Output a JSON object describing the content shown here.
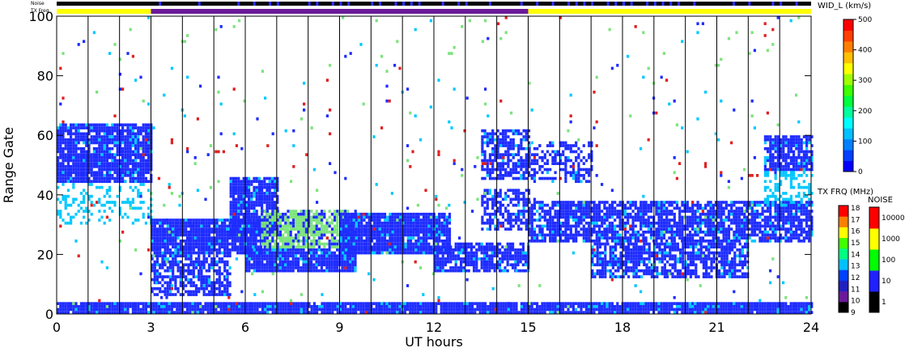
{
  "chart_data": {
    "type": "heatmap",
    "xlabel": "UT hours",
    "ylabel": "Range Gate",
    "xlim": [
      0,
      24
    ],
    "ylim": [
      0,
      100
    ],
    "x_ticks": [
      "0",
      "3",
      "6",
      "9",
      "12",
      "15",
      "18",
      "21",
      "24"
    ],
    "x_tick_values": [
      0,
      3,
      6,
      9,
      12,
      15,
      18,
      21,
      24
    ],
    "y_ticks": [
      "0",
      "20",
      "40",
      "60",
      "80",
      "100"
    ],
    "y_tick_values": [
      0,
      20,
      40,
      60,
      80,
      100
    ],
    "scan_lines_hours": [
      1,
      2,
      3,
      4,
      5,
      6,
      7,
      8,
      9,
      10,
      11,
      12,
      13,
      14,
      15,
      16,
      17,
      18,
      19,
      20,
      21,
      22,
      23
    ],
    "top_strips": {
      "noise_label": "Noise",
      "txfreq_label": "TX Freq",
      "txfreq_segments": [
        {
          "from": 0,
          "to": 3,
          "color": "#ffff00"
        },
        {
          "from": 3,
          "to": 15,
          "color": "#6a1a9a"
        },
        {
          "from": 15,
          "to": 24,
          "color": "#ffff00"
        }
      ]
    },
    "scatter_regions": [
      {
        "x0": 0.0,
        "x1": 3.0,
        "y0": 44,
        "y1": 64,
        "level": 1,
        "density": 0.9
      },
      {
        "x0": 0.0,
        "x1": 3.0,
        "y0": 30,
        "y1": 44,
        "level": 2,
        "density": 0.25
      },
      {
        "x0": 3.0,
        "x1": 6.5,
        "y0": 20,
        "y1": 32,
        "level": 1,
        "density": 0.95
      },
      {
        "x0": 3.0,
        "x1": 5.5,
        "y0": 6,
        "y1": 20,
        "level": 1,
        "density": 0.7
      },
      {
        "x0": 5.5,
        "x1": 7.0,
        "y0": 26,
        "y1": 46,
        "level": 1,
        "density": 0.85
      },
      {
        "x0": 6.0,
        "x1": 9.5,
        "y0": 14,
        "y1": 22,
        "level": 1,
        "density": 0.95
      },
      {
        "x0": 6.5,
        "x1": 9.5,
        "y0": 22,
        "y1": 35,
        "level": 3,
        "density": 0.8
      },
      {
        "x0": 9.0,
        "x1": 12.5,
        "y0": 20,
        "y1": 34,
        "level": 1,
        "density": 0.95
      },
      {
        "x0": 12.0,
        "x1": 15.0,
        "y0": 14,
        "y1": 24,
        "level": 1,
        "density": 0.8
      },
      {
        "x0": 13.5,
        "x1": 15.0,
        "y0": 45,
        "y1": 62,
        "level": 1,
        "density": 0.7
      },
      {
        "x0": 13.5,
        "x1": 15.0,
        "y0": 28,
        "y1": 42,
        "level": 1,
        "density": 0.6
      },
      {
        "x0": 15.0,
        "x1": 17.0,
        "y0": 44,
        "y1": 58,
        "level": 1,
        "density": 0.5
      },
      {
        "x0": 15.0,
        "x1": 24.0,
        "y0": 24,
        "y1": 38,
        "level": 1,
        "density": 0.8
      },
      {
        "x0": 17.0,
        "x1": 22.0,
        "y0": 12,
        "y1": 24,
        "level": 1,
        "density": 0.75
      },
      {
        "x0": 22.5,
        "x1": 24.0,
        "y0": 48,
        "y1": 60,
        "level": 1,
        "density": 0.85
      },
      {
        "x0": 22.5,
        "x1": 24.0,
        "y0": 36,
        "y1": 48,
        "level": 2,
        "density": 0.4
      },
      {
        "x0": 0.0,
        "x1": 24.0,
        "y0": 0,
        "y1": 4,
        "level": 1,
        "density": 0.95
      },
      {
        "x0": 0.0,
        "x1": 24.0,
        "y0": 0,
        "y1": 100,
        "level": 4,
        "density": 0.015
      }
    ]
  },
  "colorbars": {
    "width": {
      "title": "WID_L (km/s)",
      "ticks": [
        "500",
        "400",
        "300",
        "200",
        "100",
        "0"
      ],
      "tick_values": [
        500,
        400,
        300,
        200,
        100,
        0
      ],
      "colors": [
        "#0000ff",
        "#0040ff",
        "#0080ff",
        "#00c0ff",
        "#00ffff",
        "#00ffa0",
        "#00ff40",
        "#40ff00",
        "#a0ff00",
        "#ffff00",
        "#ffc000",
        "#ff8000",
        "#ff4000",
        "#ff0000"
      ]
    },
    "txfreq": {
      "title": "TX FRQ (MHz)",
      "ticks": [
        "18",
        "17",
        "16",
        "15",
        "14",
        "13",
        "12",
        "11",
        "10",
        "9"
      ],
      "colors": [
        "#000000",
        "#6a1a9a",
        "#2020c0",
        "#0040ff",
        "#00c0ff",
        "#00ff80",
        "#40ff00",
        "#ffff00",
        "#ff8000",
        "#ff0000"
      ]
    },
    "noise": {
      "title": "NOISE",
      "ticks": [
        "10000",
        "1000",
        "100",
        "10",
        "1"
      ],
      "colors": [
        "#000000",
        "#2020ff",
        "#00ff00",
        "#ffff00",
        "#ff0000"
      ]
    }
  },
  "level_colors": [
    "#000000",
    "#1e2cff",
    "#00c8ff",
    "#7de37d",
    "#e02020"
  ]
}
